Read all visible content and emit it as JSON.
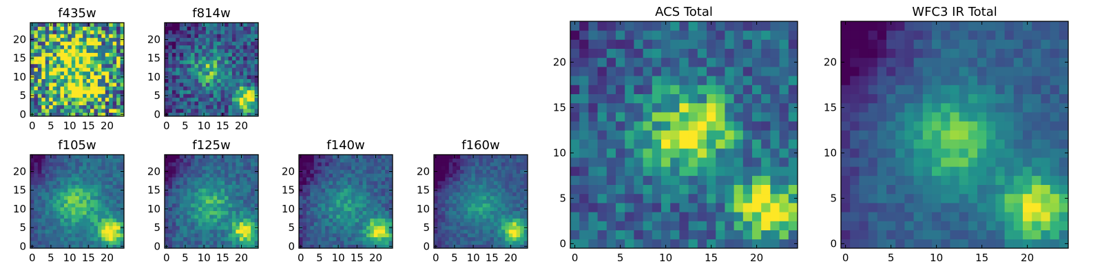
{
  "chart_data": {
    "type": "heatmap",
    "colormap": "viridis",
    "grid": false,
    "panels": [
      {
        "id": "f435w",
        "title": "f435w",
        "xticks": [
          0,
          5,
          10,
          15,
          20
        ],
        "yticks": [
          0,
          5,
          10,
          15,
          20
        ],
        "range": [
          0,
          24
        ],
        "features": {
          "noise": 0.9,
          "blobs": [
            {
              "x": 12,
              "y": 15,
              "sigma": 5,
              "amp": 0.4
            },
            {
              "x": 12,
              "y": 8,
              "sigma": 5,
              "amp": 0.3
            }
          ],
          "dark_corner": 0,
          "base": 0.55
        }
      },
      {
        "id": "f814w",
        "title": "f814w",
        "xticks": [
          0,
          5,
          10,
          15,
          20
        ],
        "yticks": [
          0,
          5,
          10,
          15,
          20
        ],
        "range": [
          0,
          24
        ],
        "features": {
          "noise": 0.55,
          "blobs": [
            {
              "x": 11,
              "y": 12,
              "sigma": 3.5,
              "amp": 0.35
            },
            {
              "x": 21,
              "y": 4,
              "sigma": 2.3,
              "amp": 0.7
            }
          ],
          "dark_corner": 0.3,
          "base": 0.35
        }
      },
      {
        "id": "f105w",
        "title": "f105w",
        "xticks": [
          0,
          5,
          10,
          15,
          20
        ],
        "yticks": [
          0,
          5,
          10,
          15,
          20
        ],
        "range": [
          0,
          24
        ],
        "features": {
          "noise": 0.25,
          "blobs": [
            {
              "x": 12,
              "y": 11,
              "sigma": 4.5,
              "amp": 0.4
            },
            {
              "x": 21,
              "y": 4,
              "sigma": 2.5,
              "amp": 0.65
            }
          ],
          "dark_corner": 0.4,
          "base": 0.42
        }
      },
      {
        "id": "f125w",
        "title": "f125w",
        "xticks": [
          0,
          5,
          10,
          15,
          20
        ],
        "yticks": [
          0,
          5,
          10,
          15,
          20
        ],
        "range": [
          0,
          24
        ],
        "features": {
          "noise": 0.28,
          "blobs": [
            {
              "x": 12,
              "y": 11,
              "sigma": 4.5,
              "amp": 0.35
            },
            {
              "x": 21,
              "y": 4,
              "sigma": 2.5,
              "amp": 0.6
            }
          ],
          "dark_corner": 0.45,
          "base": 0.4
        }
      },
      {
        "id": "f140w",
        "title": "f140w",
        "xticks": [
          0,
          5,
          10,
          15,
          20
        ],
        "yticks": [
          0,
          5,
          10,
          15,
          20
        ],
        "range": [
          0,
          24
        ],
        "features": {
          "noise": 0.28,
          "blobs": [
            {
              "x": 12,
              "y": 11,
              "sigma": 4.5,
              "amp": 0.32
            },
            {
              "x": 21,
              "y": 4,
              "sigma": 2.6,
              "amp": 0.65
            }
          ],
          "dark_corner": 0.5,
          "base": 0.36
        }
      },
      {
        "id": "f160w",
        "title": "f160w",
        "xticks": [
          0,
          5,
          10,
          15,
          20
        ],
        "yticks": [
          0,
          5,
          10,
          15,
          20
        ],
        "range": [
          0,
          24
        ],
        "features": {
          "noise": 0.22,
          "blobs": [
            {
              "x": 12,
              "y": 11,
              "sigma": 4.5,
              "amp": 0.32
            },
            {
              "x": 21,
              "y": 4,
              "sigma": 2.6,
              "amp": 0.65
            }
          ],
          "dark_corner": 0.6,
          "base": 0.34
        }
      },
      {
        "id": "acs_total",
        "title": "ACS Total",
        "xticks": [
          0,
          5,
          10,
          15,
          20
        ],
        "yticks": [
          0,
          5,
          10,
          15,
          20
        ],
        "range": [
          0,
          24
        ],
        "features": {
          "noise": 0.45,
          "blobs": [
            {
              "x": 12,
              "y": 12,
              "sigma": 3.2,
              "amp": 0.5
            },
            {
              "x": 21,
              "y": 4,
              "sigma": 2.5,
              "amp": 0.6
            },
            {
              "x": 15,
              "y": 13,
              "sigma": 2,
              "amp": 0.2
            }
          ],
          "dark_corner": 0.15,
          "base": 0.42
        }
      },
      {
        "id": "wfc3_ir_total",
        "title": "WFC3 IR Total",
        "xticks": [
          0,
          5,
          10,
          15,
          20
        ],
        "yticks": [
          0,
          5,
          10,
          15,
          20
        ],
        "range": [
          0,
          24
        ],
        "features": {
          "noise": 0.2,
          "blobs": [
            {
              "x": 12,
              "y": 11.5,
              "sigma": 4,
              "amp": 0.45
            },
            {
              "x": 21,
              "y": 4,
              "sigma": 2.8,
              "amp": 0.6
            }
          ],
          "dark_corner": 0.55,
          "base": 0.38
        }
      }
    ]
  }
}
